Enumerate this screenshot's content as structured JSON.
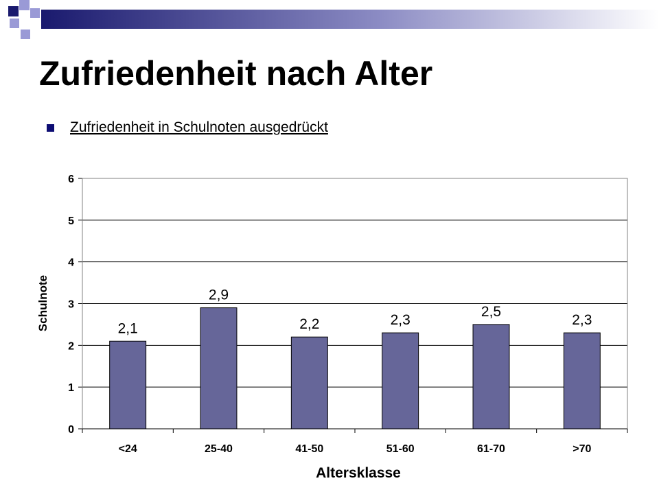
{
  "slide": {
    "title": "Zufriedenheit nach Alter",
    "bullet": "Zufriedenheit in Schulnoten ausgedrückt"
  },
  "colors": {
    "bar": "#666699",
    "bullet": "#0d0d73",
    "deco_dark": "#1a1a6e",
    "deco_light": "#9a9ad6",
    "grid": "#000000"
  },
  "chart_data": {
    "type": "bar",
    "categories": [
      "<24",
      "25-40",
      "41-50",
      "51-60",
      "61-70",
      ">70"
    ],
    "values": [
      2.1,
      2.9,
      2.2,
      2.3,
      2.5,
      2.3
    ],
    "data_labels": [
      "2,1",
      "2,9",
      "2,2",
      "2,3",
      "2,5",
      "2,3"
    ],
    "title": "",
    "xlabel": "Altersklasse",
    "ylabel": "Schulnote",
    "ylim": [
      0,
      6
    ],
    "yticks": [
      "0",
      "1",
      "2",
      "3",
      "4",
      "5",
      "6"
    ],
    "grid": true,
    "legend": "none"
  }
}
